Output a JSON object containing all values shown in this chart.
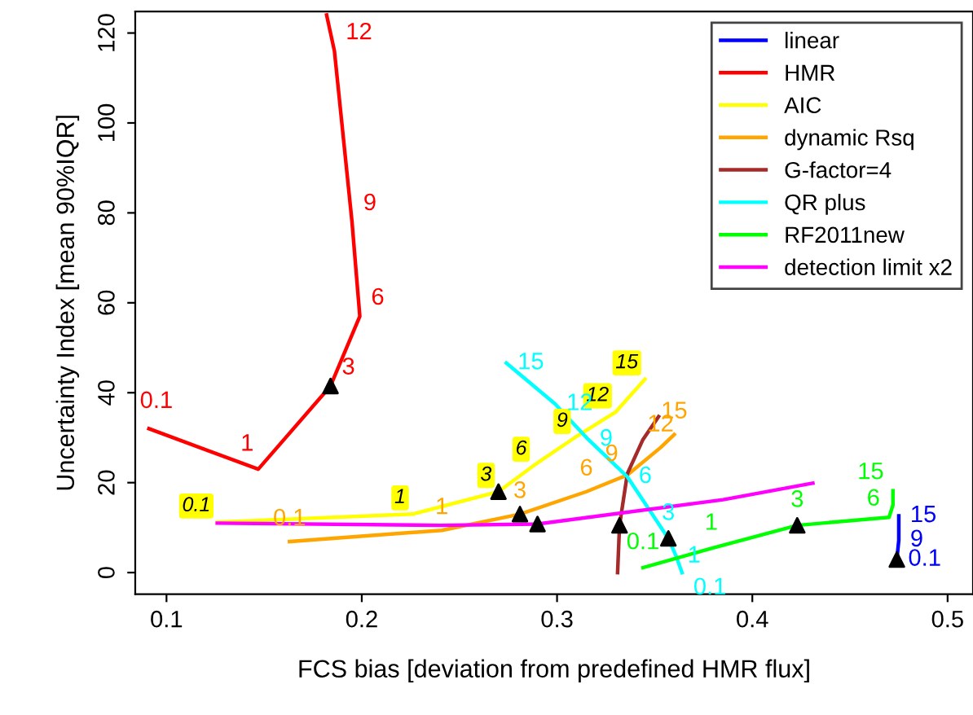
{
  "chart_data": {
    "type": "line",
    "xlabel": "FCS bias [deviation from predefined HMR flux]",
    "ylabel": "Uncertainty Index [mean 90%IQR]",
    "xlim": [
      0.084,
      0.513
    ],
    "ylim": [
      -4.8,
      124.8
    ],
    "xticks": [
      0.1,
      0.2,
      0.3,
      0.4,
      0.5
    ],
    "yticks": [
      0,
      20,
      40,
      60,
      80,
      100,
      120
    ],
    "grid": false,
    "legend": "top right",
    "marker": "none",
    "line_style": "solid",
    "series": [
      {
        "name": "linear",
        "color": "#0000ff",
        "x": [
          0.474,
          0.475,
          0.475
        ],
        "values": [
          2.9,
          7.2,
          12.6
        ]
      },
      {
        "name": "HMR",
        "color": "#ff0000",
        "x": [
          0.091,
          0.147,
          0.184,
          0.199,
          0.195,
          0.186,
          0.182
        ],
        "values": [
          32,
          23,
          41.5,
          57,
          78,
          116,
          124
        ]
      },
      {
        "name": "AIC",
        "color": "#ffff00",
        "x": [
          0.126,
          0.226,
          0.27,
          0.288,
          0.309,
          0.33,
          0.345
        ],
        "values": [
          11.2,
          13,
          18,
          23.8,
          30,
          35.7,
          43
        ]
      },
      {
        "name": "dynamic Rsq",
        "color": "#ffa500",
        "x": [
          0.163,
          0.241,
          0.281,
          0.315,
          0.336,
          0.353,
          0.36
        ],
        "values": [
          6.9,
          9.4,
          13,
          18,
          21.7,
          27.8,
          30.7
        ]
      },
      {
        "name": "G-factor=4",
        "color": "#a52a2a",
        "x": [
          0.331,
          0.332,
          0.336,
          0.344,
          0.352
        ],
        "values": [
          0,
          10.5,
          22,
          29.6,
          34.7
        ]
      },
      {
        "name": "QR plus",
        "color": "#00ffff",
        "x": [
          0.274,
          0.299,
          0.316,
          0.336,
          0.357,
          0.361,
          0.364
        ],
        "values": [
          46.6,
          37.5,
          29.6,
          21.3,
          7.6,
          3.6,
          0
        ]
      },
      {
        "name": "RF2011new",
        "color": "#00ff00",
        "x": [
          0.344,
          0.379,
          0.423,
          0.47,
          0.472,
          0.472,
          0.472
        ],
        "values": [
          1.1,
          5.4,
          10.5,
          12.3,
          15,
          17,
          18.2
        ]
      },
      {
        "name": "detection limit x2",
        "color": "#ff00ff",
        "x": [
          0.126,
          0.24,
          0.29,
          0.385,
          0.431
        ],
        "values": [
          11,
          10.5,
          10.8,
          16.2,
          19.9
        ]
      },
      {
        "type": "scatter",
        "marker": "triangle",
        "color": "#000000",
        "x": [
          0.184,
          0.27,
          0.281,
          0.29,
          0.332,
          0.357,
          0.423,
          0.474
        ],
        "values": [
          41.5,
          18,
          13,
          10.8,
          10.5,
          7.6,
          10.5,
          2.9
        ]
      }
    ],
    "annotations": [
      {
        "text": "0.1",
        "x": 0.474,
        "y": 2.9
      },
      {
        "text": "9",
        "x": 0.475,
        "y": 7.2
      },
      {
        "text": "15",
        "x": 0.475,
        "y": 12.6
      },
      {
        "text": "0.1",
        "x": 0.091,
        "y": 32
      },
      {
        "text": "1",
        "x": 0.147,
        "y": 23
      },
      {
        "text": "3",
        "x": 0.184,
        "y": 41.5
      },
      {
        "text": "6",
        "x": 0.199,
        "y": 57
      },
      {
        "text": "9",
        "x": 0.195,
        "y": 78
      },
      {
        "text": "12",
        "x": 0.186,
        "y": 116
      },
      {
        "text": "0.1",
        "x": 0.126,
        "y": 11.2
      },
      {
        "text": "1",
        "x": 0.226,
        "y": 13
      },
      {
        "text": "3",
        "x": 0.27,
        "y": 18
      },
      {
        "text": "6",
        "x": 0.288,
        "y": 23.8
      },
      {
        "text": "9",
        "x": 0.309,
        "y": 30
      },
      {
        "text": "12",
        "x": 0.33,
        "y": 35.7
      },
      {
        "text": "15",
        "x": 0.345,
        "y": 43
      },
      {
        "text": "0.1",
        "x": 0.163,
        "y": 6.9
      },
      {
        "text": "1",
        "x": 0.241,
        "y": 9.4
      },
      {
        "text": "3",
        "x": 0.281,
        "y": 13
      },
      {
        "text": "6",
        "x": 0.315,
        "y": 18
      },
      {
        "text": "9",
        "x": 0.336,
        "y": 21.7
      },
      {
        "text": "12",
        "x": 0.353,
        "y": 27.8
      },
      {
        "text": "15",
        "x": 0.36,
        "y": 30.7
      },
      {
        "text": "15",
        "x": 0.274,
        "y": 46.6
      },
      {
        "text": "12",
        "x": 0.299,
        "y": 37.5
      },
      {
        "text": "9",
        "x": 0.316,
        "y": 29.6
      },
      {
        "text": "6",
        "x": 0.336,
        "y": 21.3
      },
      {
        "text": "3",
        "x": 0.357,
        "y": 7.6
      },
      {
        "text": "1",
        "x": 0.361,
        "y": 3.6
      },
      {
        "text": "0.1",
        "x": 0.364,
        "y": 0
      },
      {
        "text": "0.1",
        "x": 0.344,
        "y": 1.1
      },
      {
        "text": "1",
        "x": 0.379,
        "y": 5.4
      },
      {
        "text": "3",
        "x": 0.423,
        "y": 10.5
      },
      {
        "text": "6",
        "x": 0.47,
        "y": 12.3
      },
      {
        "text": "15",
        "x": 0.472,
        "y": 18.2
      }
    ]
  }
}
